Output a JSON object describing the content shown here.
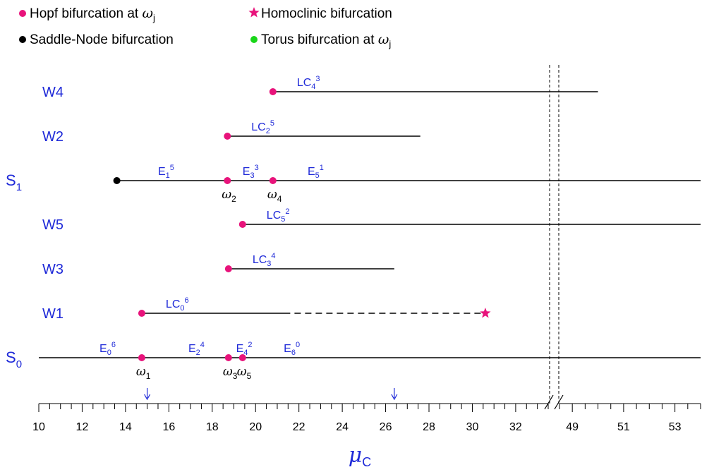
{
  "colors": {
    "hopf": "#e8137b",
    "saddle_node": "#000000",
    "homoclinic": "#e8137b",
    "torus": "#19d619",
    "label_blue": "#1f2ad8",
    "line": "#000000"
  },
  "legend": [
    {
      "marker": "circle",
      "color": "#e8137b",
      "text": "Hopf bifurcation at ",
      "math": "ω",
      "sub": "j"
    },
    {
      "marker": "star",
      "color": "#e8137b",
      "text": "Homoclinic bifurcation",
      "math": "",
      "sub": ""
    },
    {
      "marker": "circle",
      "color": "#000000",
      "text": "Saddle-Node bifurcation",
      "math": "",
      "sub": ""
    },
    {
      "marker": "circle",
      "color": "#19d619",
      "text": "Torus bifurcation at ",
      "math": "ω",
      "sub": "j"
    }
  ],
  "axis": {
    "title_symbol": "μ",
    "title_sub": "C",
    "break_between": [
      "32",
      "49"
    ],
    "tick_labels_left": [
      "10",
      "12",
      "14",
      "16",
      "18",
      "20",
      "22",
      "24",
      "26",
      "28",
      "30",
      "32"
    ],
    "tick_labels_right": [
      "49",
      "51",
      "53"
    ],
    "left_range": [
      10,
      33.5
    ],
    "right_range": [
      48.5,
      54
    ],
    "arrow_markers": [
      15,
      26.4
    ]
  },
  "branches": [
    {
      "name": "W4",
      "label_base": "LC",
      "label_sub": "4",
      "label_sup": "3",
      "start": 20.8,
      "end": 50.0,
      "start_marker": "hopf",
      "dashed_end": null
    },
    {
      "name": "W2",
      "label_base": "LC",
      "label_sub": "2",
      "label_sup": "5",
      "start": 18.7,
      "end": 27.6,
      "start_marker": "hopf",
      "dashed_end": null
    },
    {
      "name": "S",
      "name_sub": "1",
      "start": 13.6,
      "end": 54,
      "start_marker": "saddle_node",
      "segments": [
        {
          "base": "E",
          "sub": "1",
          "sup": "5",
          "at": 15.5
        },
        {
          "base": "E",
          "sub": "3",
          "sup": "3",
          "at": 19.4
        },
        {
          "base": "E",
          "sub": "5",
          "sup": "1",
          "at": 22.4
        }
      ],
      "hopf_points": [
        {
          "at": 18.7,
          "omega_sub": "2"
        },
        {
          "at": 20.8,
          "omega_sub": "4"
        }
      ]
    },
    {
      "name": "W5",
      "label_base": "LC",
      "label_sub": "5",
      "label_sup": "2",
      "start": 19.4,
      "end": 54,
      "start_marker": "hopf",
      "dashed_end": null
    },
    {
      "name": "W3",
      "label_base": "LC",
      "label_sub": "3",
      "label_sup": "4",
      "start": 18.75,
      "end": 26.4,
      "start_marker": "hopf",
      "dashed_end": null
    },
    {
      "name": "W1",
      "label_base": "LC",
      "label_sub": "0",
      "label_sup": "6",
      "start": 14.75,
      "end": 21.6,
      "start_marker": "hopf",
      "dashed_end": 30.6,
      "end_marker": "homoclinic"
    },
    {
      "name": "S",
      "name_sub": "0",
      "start": 10,
      "end": 54,
      "start_marker": null,
      "segments": [
        {
          "base": "E",
          "sub": "0",
          "sup": "6",
          "at": 12.8
        },
        {
          "base": "E",
          "sub": "2",
          "sup": "4",
          "at": 16.9
        },
        {
          "base": "E",
          "sub": "4",
          "sup": "2",
          "at": 19.1
        },
        {
          "base": "E",
          "sub": "6",
          "sup": "0",
          "at": 21.3
        }
      ],
      "hopf_points": [
        {
          "at": 14.75,
          "omega_sub": "1"
        },
        {
          "at": 18.75,
          "omega_sub": "3"
        },
        {
          "at": 19.4,
          "omega_sub": "5"
        }
      ]
    }
  ]
}
